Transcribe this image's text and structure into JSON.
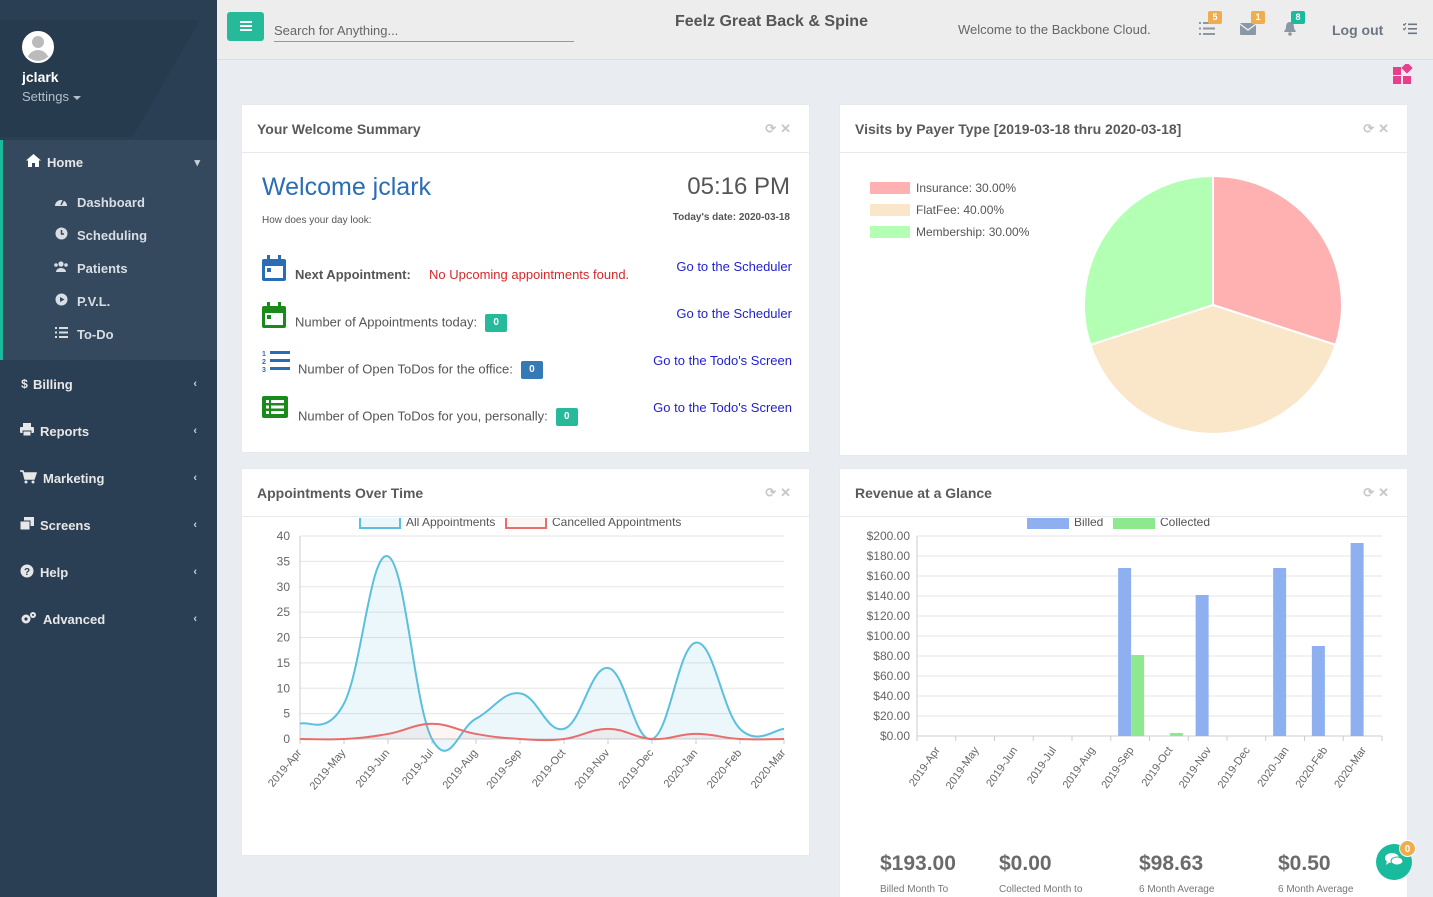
{
  "sidebar": {
    "username": "jclark",
    "settings_label": "Settings",
    "home": {
      "label": "Home",
      "icon": "home-icon"
    },
    "home_items": [
      {
        "label": "Dashboard",
        "icon": "dashboard-icon"
      },
      {
        "label": "Scheduling",
        "icon": "clock-icon"
      },
      {
        "label": "Patients",
        "icon": "users-icon"
      },
      {
        "label": "P.V.L.",
        "icon": "play-circle-icon"
      },
      {
        "label": "To-Do",
        "icon": "list-icon"
      }
    ],
    "sections": [
      {
        "label": "Billing",
        "icon": "dollar-icon"
      },
      {
        "label": "Reports",
        "icon": "print-icon"
      },
      {
        "label": "Marketing",
        "icon": "cart-icon"
      },
      {
        "label": "Screens",
        "icon": "clone-icon"
      },
      {
        "label": "Help",
        "icon": "question-icon"
      },
      {
        "label": "Advanced",
        "icon": "cogs-icon"
      }
    ]
  },
  "topbar": {
    "search_placeholder": "Search for Anything...",
    "site_title": "Feelz Great Back & Spine",
    "welcome": "Welcome to the Backbone Cloud.",
    "badges": {
      "tasks": "5",
      "mail": "1",
      "alerts": "8"
    },
    "logout": "Log out"
  },
  "welcome_panel": {
    "title": "Your Welcome Summary",
    "heading": "Welcome jclark",
    "time": "05:16 PM",
    "question": "How does your day look:",
    "today": "Today's date: 2020-03-18",
    "next_appt_label": "Next Appointment:",
    "next_appt_value": "No Upcoming appointments found.",
    "appts_today_label": "Number of Appointments today:",
    "appts_today_count": "0",
    "office_todos_label": "Number of Open ToDos for the office:",
    "office_todos_count": "0",
    "personal_todos_label": "Number of Open ToDos for you, personally:",
    "personal_todos_count": "0",
    "scheduler_link": "Go to the Scheduler",
    "todo_link": "Go to the Todo's Screen"
  },
  "payer_panel": {
    "title": "Visits by Payer Type [2019-03-18 thru 2020-03-18]"
  },
  "appointments_panel": {
    "title": "Appointments Over Time"
  },
  "revenue_panel": {
    "title": "Revenue at a Glance",
    "stats": [
      {
        "value": "$193.00",
        "label": "Billed Month To"
      },
      {
        "value": "$0.00",
        "label": "Collected Month to"
      },
      {
        "value": "$98.63",
        "label": "6 Month Average"
      },
      {
        "value": "$0.50",
        "label": "6 Month Average"
      }
    ]
  },
  "chat_badge": "0",
  "colors": {
    "sidebar": "#2a3f54",
    "accent": "#1abb9c",
    "link": "#1f1fd0",
    "heading_blue": "#2a6db5",
    "badge_orange": "#f0ad4e",
    "badge_green": "#1abb9c",
    "count_teal": "#26b99a",
    "count_blue": "#337ab7"
  },
  "chart_data": [
    {
      "type": "pie",
      "categories": [
        "Insurance",
        "FlatFee",
        "Membership"
      ],
      "legend_labels": [
        "Insurance: 30.00%",
        "FlatFee: 40.00%",
        "Membership: 30.00%"
      ],
      "values": [
        30,
        40,
        30
      ],
      "colors": [
        "#ffb1b1",
        "#fae6c8",
        "#b3ffb3"
      ],
      "legend": "top-left"
    },
    {
      "type": "area",
      "categories": [
        "2019-Apr",
        "2019-May",
        "2019-Jun",
        "2019-Jul",
        "2019-Aug",
        "2019-Sep",
        "2019-Oct",
        "2019-Nov",
        "2019-Dec",
        "2020-Jan",
        "2020-Feb",
        "2020-Mar"
      ],
      "series": [
        {
          "name": "All Appointments",
          "values": [
            3,
            7,
            36,
            0,
            4,
            9,
            2,
            14,
            0,
            19,
            2,
            2
          ],
          "color": "#5bc0de"
        },
        {
          "name": "Cancelled Appointments",
          "values": [
            0,
            0,
            1,
            3,
            1,
            0,
            0,
            2,
            0,
            1,
            0,
            0
          ],
          "color": "#e86d6d"
        }
      ],
      "ylim": [
        0,
        40
      ],
      "yticks": [
        0,
        5,
        10,
        15,
        20,
        25,
        30,
        35,
        40
      ],
      "grid": true,
      "legend": "top"
    },
    {
      "type": "bar",
      "categories": [
        "2019-Apr",
        "2019-May",
        "2019-Jun",
        "2019-Jul",
        "2019-Aug",
        "2019-Sep",
        "2019-Oct",
        "2019-Nov",
        "2019-Dec",
        "2020-Jan",
        "2020-Feb",
        "2020-Mar"
      ],
      "series": [
        {
          "name": "Billed",
          "values": [
            0,
            0,
            0,
            0,
            0,
            168,
            0,
            141,
            0,
            168,
            90,
            193
          ],
          "color": "#8fb0f0"
        },
        {
          "name": "Collected",
          "values": [
            0,
            0,
            0,
            0,
            0,
            81,
            3,
            0,
            0,
            0,
            0,
            0
          ],
          "color": "#8ee88e"
        }
      ],
      "ylim": [
        0,
        200
      ],
      "yticks": [
        "$0.00",
        "$20.00",
        "$40.00",
        "$60.00",
        "$80.00",
        "$100.00",
        "$120.00",
        "$140.00",
        "$160.00",
        "$180.00",
        "$200.00"
      ],
      "grid": true,
      "legend": "top"
    }
  ]
}
